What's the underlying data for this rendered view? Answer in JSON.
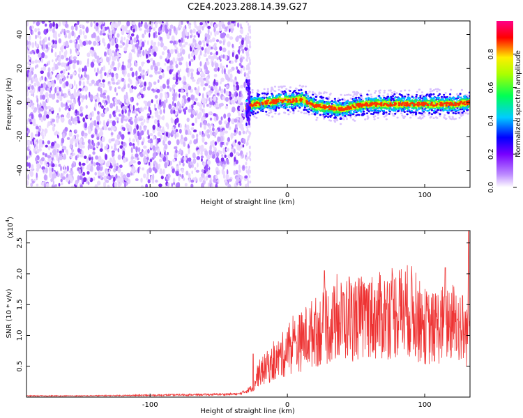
{
  "title": "C2E4.2023.288.14.39.G27",
  "chart_data": [
    {
      "type": "heatmap",
      "xlabel": "Height of straight line (km)",
      "ylabel": "Frequency (Hz)",
      "xlim": [
        -190,
        133
      ],
      "ylim": [
        -50,
        48
      ],
      "xticks": [
        -100,
        0,
        100
      ],
      "yticks": [
        -40,
        -20,
        0,
        20,
        40
      ],
      "colorbar": {
        "label": "Normalized spectral amplitude",
        "range": [
          0.0,
          1.0
        ],
        "ticks": [
          "0.0",
          "0.2",
          "0.4",
          "0.6",
          "0.8"
        ]
      },
      "signal_track": {
        "onset_height_km": -30,
        "center_frequency_hz": [
          [
            -30,
            -3
          ],
          [
            -25,
            -1
          ],
          [
            -15,
            0
          ],
          [
            -5,
            1
          ],
          [
            5,
            1
          ],
          [
            10,
            2
          ],
          [
            20,
            -2
          ],
          [
            30,
            -3
          ],
          [
            40,
            -4
          ],
          [
            50,
            -2
          ],
          [
            60,
            -1
          ],
          [
            80,
            -1
          ],
          [
            100,
            -1
          ],
          [
            120,
            -1
          ],
          [
            133,
            0
          ]
        ]
      },
      "noise_region_km": [
        -190,
        -30
      ]
    },
    {
      "type": "line",
      "xlabel": "Height of straight line (km)",
      "ylabel": "SNR (10 * v/v)",
      "y_scale_label": "(x10",
      "y_scale_exp": "4",
      "xlim": [
        -190,
        133
      ],
      "ylim": [
        0,
        27000
      ],
      "xticks": [
        -100,
        0,
        100
      ],
      "yticklabels": [
        "0.5",
        "1.0",
        "1.5",
        "2.0",
        "2.5"
      ],
      "yticks": [
        5000,
        10000,
        15000,
        20000,
        25000
      ],
      "series": [
        {
          "color": "#ee3333",
          "x": [
            -190,
            -150,
            -100,
            -60,
            -35,
            -25,
            -22,
            -20,
            -15,
            -10,
            -5,
            0,
            5,
            10,
            15,
            20,
            25,
            30,
            35,
            40,
            45,
            50,
            55,
            60,
            65,
            70,
            75,
            80,
            85,
            90,
            95,
            100,
            105,
            110,
            115,
            120,
            125,
            128,
            130,
            132,
            133
          ],
          "mean": [
            200,
            200,
            300,
            400,
            500,
            1500,
            3500,
            4000,
            4800,
            5500,
            6500,
            7500,
            8500,
            9000,
            10000,
            10500,
            11000,
            11500,
            12000,
            12500,
            12800,
            12800,
            12800,
            13000,
            13000,
            13200,
            13500,
            13700,
            14000,
            14000,
            12500,
            11500,
            11000,
            11500,
            12000,
            12500,
            12000,
            11000,
            10000,
            12000,
            10000
          ],
          "peaks": [
            [
              -25,
              7000
            ],
            [
              -15,
              6500
            ],
            [
              0,
              10500
            ],
            [
              20,
              13500
            ],
            [
              27,
              20500
            ],
            [
              45,
              19500
            ],
            [
              60,
              18500
            ],
            [
              115,
              21000
            ],
            [
              132,
              27000
            ]
          ]
        }
      ]
    }
  ],
  "colors": {
    "line": "#ee3333",
    "noise": "#7b2ff7",
    "colormap": [
      "#cc99ff",
      "#8800ff",
      "#0000ff",
      "#00ccff",
      "#00ff66",
      "#aaff00",
      "#ffff00",
      "#ff8800",
      "#ff0000",
      "#ff00aa"
    ]
  }
}
